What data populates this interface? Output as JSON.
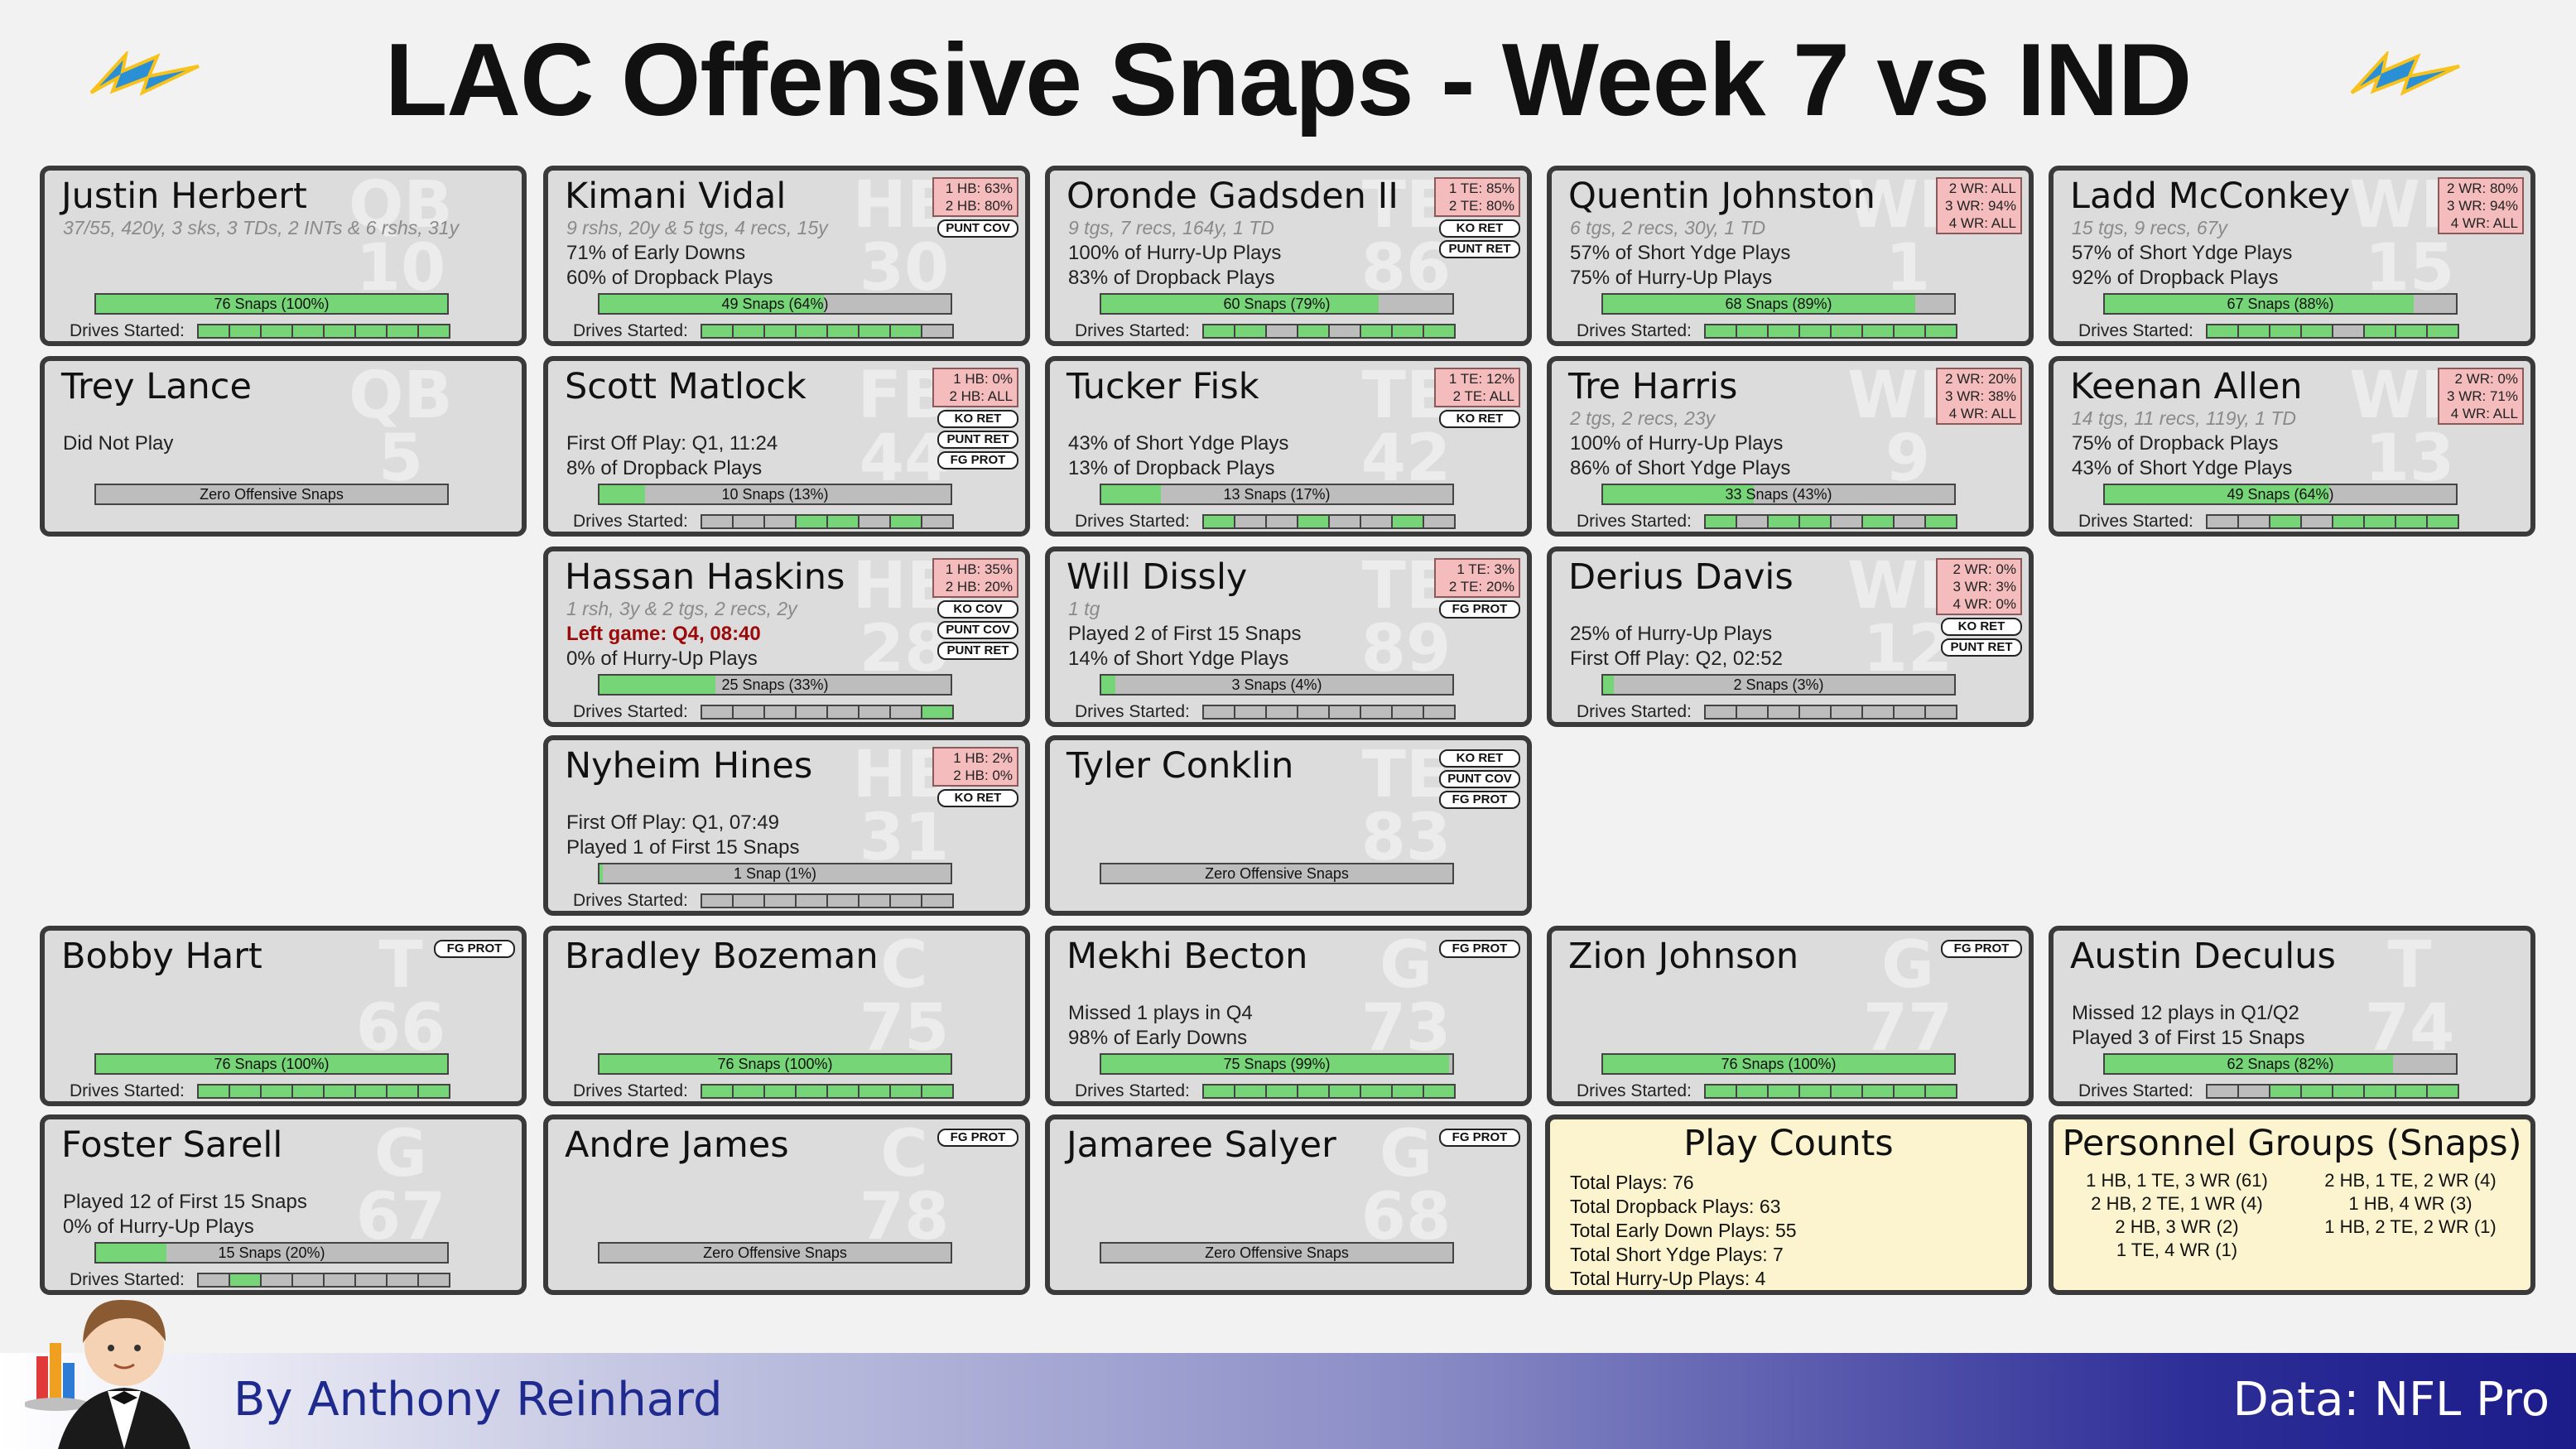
{
  "title": "LAC Offensive Snaps - Week 7 vs IND",
  "byline": "By Anthony Reinhard",
  "source": "Data: NFL Pro",
  "drives_label": "Drives Started:",
  "colors": {
    "bar_fill": "#76d576",
    "bar_empty": "#bdbdbd",
    "card_bg": "#dcdcdc",
    "info_bg": "#fcf4ce",
    "tag_bg": "#f4bcbc",
    "logo_blue": "#2b8fd6",
    "logo_gold": "#f6c21b"
  },
  "players": [
    {
      "name": "Justin Herbert",
      "pos": "QB",
      "num": "10",
      "stat": "37/55, 420y, 3 sks, 3 TDs, 2 INTs & 6 rshs, 31y",
      "notes": [],
      "pos_tags": [],
      "special": [],
      "snap_label": "76 Snaps (100%)",
      "snap_pct": 100,
      "drives": [
        1,
        1,
        1,
        1,
        1,
        1,
        1,
        1
      ]
    },
    {
      "name": "Kimani Vidal",
      "pos": "HB",
      "num": "30",
      "stat": "9 rshs, 20y & 5 tgs, 4 recs, 15y",
      "notes": [
        "71% of Early Downs",
        "60% of Dropback Plays"
      ],
      "pos_tags": [
        "1 HB: 63%",
        "2 HB: 80%"
      ],
      "special": [
        "PUNT COV"
      ],
      "snap_label": "49 Snaps (64%)",
      "snap_pct": 64,
      "drives": [
        1,
        1,
        1,
        1,
        1,
        1,
        1,
        0
      ]
    },
    {
      "name": "Oronde Gadsden II",
      "pos": "TE",
      "num": "86",
      "stat": "9 tgs, 7 recs, 164y, 1 TD",
      "notes": [
        "100% of Hurry-Up Plays",
        "83% of Dropback Plays"
      ],
      "pos_tags": [
        "1 TE: 85%",
        "2 TE: 80%"
      ],
      "special": [
        "KO RET",
        "PUNT RET"
      ],
      "snap_label": "60 Snaps (79%)",
      "snap_pct": 79,
      "drives": [
        1,
        1,
        0,
        1,
        0,
        1,
        1,
        1
      ]
    },
    {
      "name": "Quentin Johnston",
      "pos": "WR",
      "num": "1",
      "stat": "6 tgs, 2 recs, 30y, 1 TD",
      "notes": [
        "57% of Short Ydge Plays",
        "75% of Hurry-Up Plays"
      ],
      "pos_tags": [
        "2 WR: ALL",
        "3 WR: 94%",
        "4 WR: ALL"
      ],
      "special": [],
      "snap_label": "68 Snaps (89%)",
      "snap_pct": 89,
      "drives": [
        1,
        1,
        1,
        1,
        1,
        1,
        1,
        1
      ]
    },
    {
      "name": "Ladd McConkey",
      "pos": "WR",
      "num": "15",
      "stat": "15 tgs, 9 recs, 67y",
      "notes": [
        "57% of Short Ydge Plays",
        "92% of Dropback Plays"
      ],
      "pos_tags": [
        "2 WR: 80%",
        "3 WR: 94%",
        "4 WR: ALL"
      ],
      "special": [],
      "snap_label": "67 Snaps (88%)",
      "snap_pct": 88,
      "drives": [
        1,
        1,
        1,
        1,
        0,
        1,
        1,
        1
      ]
    },
    {
      "name": "Trey Lance",
      "pos": "QB",
      "num": "5",
      "stat": "",
      "notes": [
        "Did Not Play"
      ],
      "pos_tags": [],
      "special": [],
      "snap_label": "Zero Offensive Snaps",
      "snap_pct": 0,
      "drives": []
    },
    {
      "name": "Scott Matlock",
      "pos": "FB",
      "num": "44",
      "stat": "",
      "notes": [
        "First Off Play: Q1, 11:24",
        "8% of Dropback Plays"
      ],
      "pos_tags": [
        "1 HB: 0%",
        "2 HB: ALL"
      ],
      "special": [
        "KO RET",
        "PUNT RET",
        "FG PROT"
      ],
      "snap_label": "10 Snaps (13%)",
      "snap_pct": 13,
      "drives": [
        0,
        0,
        0,
        1,
        1,
        0,
        1,
        0
      ]
    },
    {
      "name": "Tucker Fisk",
      "pos": "TE",
      "num": "42",
      "stat": "",
      "notes": [
        "43% of Short Ydge Plays",
        "13% of Dropback Plays"
      ],
      "pos_tags": [
        "1 TE: 12%",
        "2 TE: ALL"
      ],
      "special": [
        "KO RET"
      ],
      "snap_label": "13 Snaps (17%)",
      "snap_pct": 17,
      "drives": [
        1,
        0,
        0,
        1,
        0,
        0,
        1,
        0
      ]
    },
    {
      "name": "Tre Harris",
      "pos": "WR",
      "num": "9",
      "stat": "2 tgs, 2 recs, 23y",
      "notes": [
        "100% of Hurry-Up Plays",
        "86% of Short Ydge Plays"
      ],
      "pos_tags": [
        "2 WR: 20%",
        "3 WR: 38%",
        "4 WR: ALL"
      ],
      "special": [],
      "snap_label": "33 Snaps (43%)",
      "snap_pct": 43,
      "drives": [
        1,
        0,
        1,
        1,
        0,
        1,
        0,
        1
      ]
    },
    {
      "name": "Keenan Allen",
      "pos": "WR",
      "num": "13",
      "stat": "14 tgs, 11 recs, 119y, 1 TD",
      "notes": [
        "75% of Dropback Plays",
        "43% of Short Ydge Plays"
      ],
      "pos_tags": [
        "2 WR: 0%",
        "3 WR: 71%",
        "4 WR: ALL"
      ],
      "special": [],
      "snap_label": "49 Snaps (64%)",
      "snap_pct": 64,
      "drives": [
        0,
        0,
        1,
        0,
        1,
        1,
        1,
        1
      ]
    },
    {
      "name": "Hassan Haskins",
      "pos": "HB",
      "num": "28",
      "stat": "1 rsh, 3y & 2 tgs, 2 recs, 2y",
      "notes": [
        "0% of Hurry-Up Plays"
      ],
      "red_note": "Left game: Q4, 08:40",
      "pos_tags": [
        "1 HB: 35%",
        "2 HB: 20%"
      ],
      "special": [
        "KO COV",
        "PUNT COV",
        "PUNT RET"
      ],
      "snap_label": "25 Snaps (33%)",
      "snap_pct": 33,
      "drives": [
        0,
        0,
        0,
        0,
        0,
        0,
        0,
        1
      ]
    },
    {
      "name": "Will Dissly",
      "pos": "TE",
      "num": "89",
      "stat": "1 tg",
      "notes": [
        "Played 2 of First 15 Snaps",
        "14% of Short Ydge Plays"
      ],
      "pos_tags": [
        "1 TE: 3%",
        "2 TE: 20%"
      ],
      "special": [
        "FG PROT"
      ],
      "snap_label": "3 Snaps (4%)",
      "snap_pct": 4,
      "drives": [
        0,
        0,
        0,
        0,
        0,
        0,
        0,
        0
      ]
    },
    {
      "name": "Derius Davis",
      "pos": "WR",
      "num": "12",
      "stat": "",
      "notes": [
        "25% of Hurry-Up Plays",
        "First Off Play: Q2, 02:52"
      ],
      "pos_tags": [
        "2 WR: 0%",
        "3 WR: 3%",
        "4 WR: 0%"
      ],
      "special": [
        "KO RET",
        "PUNT RET"
      ],
      "snap_label": "2 Snaps (3%)",
      "snap_pct": 3,
      "drives": [
        0,
        0,
        0,
        0,
        0,
        0,
        0,
        0
      ]
    },
    {
      "name": "Nyheim Hines",
      "pos": "HB",
      "num": "31",
      "stat": "",
      "notes": [
        "First Off Play: Q1, 07:49",
        "Played 1 of First 15 Snaps"
      ],
      "pos_tags": [
        "1 HB: 2%",
        "2 HB: 0%"
      ],
      "special": [
        "KO RET"
      ],
      "snap_label": "1 Snap (1%)",
      "snap_pct": 1,
      "drives": [
        0,
        0,
        0,
        0,
        0,
        0,
        0,
        0
      ]
    },
    {
      "name": "Tyler Conklin",
      "pos": "TE",
      "num": "83",
      "stat": "",
      "notes": [],
      "pos_tags": [],
      "special": [
        "KO RET",
        "PUNT COV",
        "FG PROT"
      ],
      "snap_label": "Zero Offensive Snaps",
      "snap_pct": 0,
      "drives": []
    },
    {
      "name": "Bobby Hart",
      "pos": "T",
      "num": "66",
      "stat": "",
      "notes": [],
      "pos_tags": [],
      "special": [
        "FG PROT"
      ],
      "snap_label": "76 Snaps (100%)",
      "snap_pct": 100,
      "drives": [
        1,
        1,
        1,
        1,
        1,
        1,
        1,
        1
      ]
    },
    {
      "name": "Bradley Bozeman",
      "pos": "C",
      "num": "75",
      "stat": "",
      "notes": [],
      "pos_tags": [],
      "special": [],
      "snap_label": "76 Snaps (100%)",
      "snap_pct": 100,
      "drives": [
        1,
        1,
        1,
        1,
        1,
        1,
        1,
        1
      ]
    },
    {
      "name": "Mekhi Becton",
      "pos": "G",
      "num": "73",
      "stat": "",
      "notes": [
        "Missed 1 plays in Q4",
        "98% of Early Downs"
      ],
      "pos_tags": [],
      "special": [
        "FG PROT"
      ],
      "snap_label": "75 Snaps (99%)",
      "snap_pct": 99,
      "drives": [
        1,
        1,
        1,
        1,
        1,
        1,
        1,
        1
      ]
    },
    {
      "name": "Zion Johnson",
      "pos": "G",
      "num": "77",
      "stat": "",
      "notes": [],
      "pos_tags": [],
      "special": [
        "FG PROT"
      ],
      "snap_label": "76 Snaps (100%)",
      "snap_pct": 100,
      "drives": [
        1,
        1,
        1,
        1,
        1,
        1,
        1,
        1
      ]
    },
    {
      "name": "Austin Deculus",
      "pos": "T",
      "num": "74",
      "stat": "",
      "notes": [
        "Missed 12 plays in Q1/Q2",
        "Played 3 of First 15 Snaps"
      ],
      "pos_tags": [],
      "special": [],
      "snap_label": "62 Snaps (82%)",
      "snap_pct": 82,
      "drives": [
        0,
        0,
        1,
        1,
        1,
        1,
        1,
        1
      ]
    },
    {
      "name": "Foster Sarell",
      "pos": "G",
      "num": "67",
      "stat": "",
      "notes": [
        "Played 12 of First 15 Snaps",
        "0% of Hurry-Up Plays"
      ],
      "pos_tags": [],
      "special": [],
      "snap_label": "15 Snaps (20%)",
      "snap_pct": 20,
      "drives": [
        0,
        1,
        0,
        0,
        0,
        0,
        0,
        0
      ]
    },
    {
      "name": "Andre James",
      "pos": "C",
      "num": "78",
      "stat": "",
      "notes": [],
      "pos_tags": [],
      "special": [
        "FG PROT"
      ],
      "snap_label": "Zero Offensive Snaps",
      "snap_pct": 0,
      "drives": []
    },
    {
      "name": "Jamaree Salyer",
      "pos": "G",
      "num": "68",
      "stat": "",
      "notes": [],
      "pos_tags": [],
      "special": [
        "FG PROT"
      ],
      "snap_label": "Zero Offensive Snaps",
      "snap_pct": 0,
      "drives": []
    }
  ],
  "play_counts": {
    "title": "Play Counts",
    "items": [
      "Total Plays: 76",
      "Total Dropback Plays: 63",
      "Total Early Down Plays: 55",
      "Total Short Ydge Plays: 7",
      "Total Hurry-Up Plays: 4"
    ]
  },
  "personnel": {
    "title": "Personnel Groups (Snaps)",
    "left": [
      "1 HB, 1 TE, 3 WR (61)",
      "2 HB, 2 TE, 1 WR (4)",
      "2 HB, 3 WR (2)",
      "1 TE, 4 WR (1)"
    ],
    "right": [
      "2 HB, 1 TE, 2 WR (4)",
      "1 HB, 4 WR (3)",
      "1 HB, 2 TE, 2 WR (1)"
    ]
  }
}
